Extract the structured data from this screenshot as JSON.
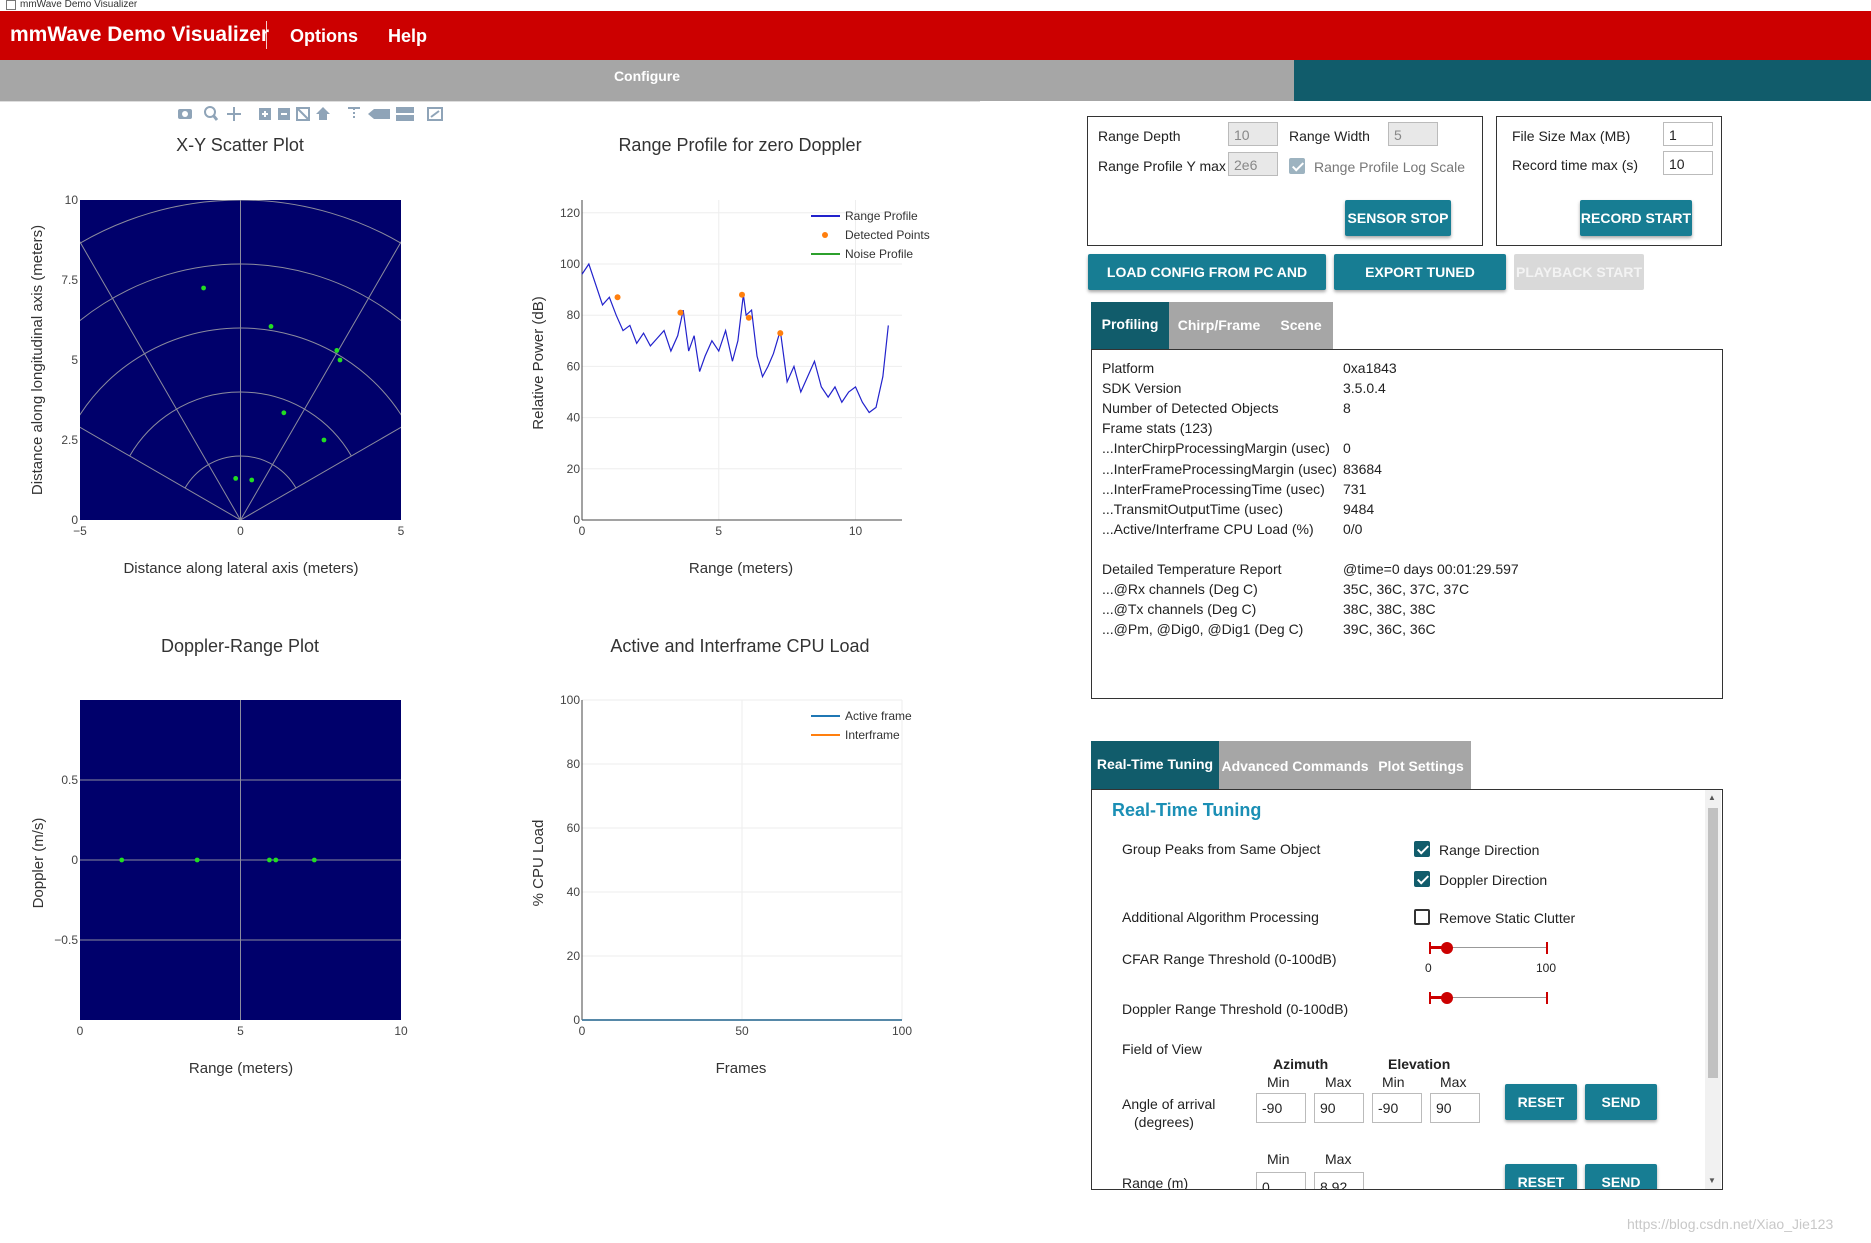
{
  "window": {
    "title": "mmWave Demo Visualizer"
  },
  "appbar": {
    "title": "mmWave Demo Visualizer",
    "menus": [
      "Options",
      "Help"
    ]
  },
  "tabs": {
    "configure": "Configure"
  },
  "toolbar": {
    "icons": [
      "camera-icon",
      "zoom-icon",
      "pan-icon",
      "zoom-in-icon",
      "zoom-out-icon",
      "autoscale-icon",
      "home-icon",
      "spike-icon",
      "hover-closest-icon",
      "hover-compare-icon",
      "logo-icon"
    ]
  },
  "colors": {
    "appbar": "#cc0000",
    "teal": "#115c6b",
    "button": "#177d93",
    "plot_bg": "#00006b",
    "points": "#22dd22",
    "range_line": "#2222cc",
    "detected": "#ff7f0e",
    "noise": "#2ca02c",
    "active_line": "#1f77b4",
    "interframe_line": "#ff7f0e"
  },
  "charts": {
    "scatter": {
      "title": "X-Y Scatter Plot",
      "xlabel": "Distance along lateral axis (meters)",
      "ylabel": "Distance along longitudinal axis (meters)",
      "xticks": [
        "−5",
        "0",
        "5"
      ],
      "yticks": [
        "0",
        "2.5",
        "5",
        "7.5",
        "10"
      ]
    },
    "range_profile": {
      "title": "Range Profile for zero Doppler",
      "xlabel": "Range (meters)",
      "ylabel": "Relative Power (dB)",
      "xticks": [
        "0",
        "5",
        "10"
      ],
      "yticks": [
        "0",
        "20",
        "40",
        "60",
        "80",
        "100",
        "120"
      ],
      "legend": [
        "Range Profile",
        "Detected Points",
        "Noise Profile"
      ]
    },
    "doppler": {
      "title": "Doppler-Range Plot",
      "xlabel": "Range (meters)",
      "ylabel": "Doppler (m/s)",
      "xticks": [
        "0",
        "5",
        "10"
      ],
      "yticks": [
        "−0.5",
        "0",
        "0.5"
      ]
    },
    "cpu": {
      "title": "Active and Interframe  CPU Load",
      "xlabel": "Frames",
      "ylabel": "% CPU Load",
      "xticks": [
        "0",
        "50",
        "100"
      ],
      "yticks": [
        "0",
        "20",
        "40",
        "60",
        "80",
        "100"
      ],
      "legend": [
        "Active frame",
        "Interframe"
      ]
    }
  },
  "chart_data": [
    {
      "type": "scatter",
      "title": "X-Y Scatter Plot",
      "xlabel": "Distance along lateral axis (meters)",
      "ylabel": "Distance along longitudinal axis (meters)",
      "xlim": [
        -5,
        5
      ],
      "ylim": [
        0,
        10
      ],
      "x": [
        -1.15,
        0.95,
        3.0,
        3.1,
        1.35,
        2.6,
        -0.15,
        0.35
      ],
      "y": [
        7.25,
        6.05,
        5.3,
        5.0,
        3.35,
        2.5,
        1.3,
        1.25
      ]
    },
    {
      "type": "line",
      "title": "Range Profile for zero Doppler",
      "xlabel": "Range (meters)",
      "ylabel": "Relative Power (dB)",
      "xlim": [
        0,
        11.7
      ],
      "ylim": [
        0,
        125
      ],
      "series": [
        {
          "name": "Range Profile",
          "x": [
            0,
            0.25,
            0.5,
            0.75,
            1.0,
            1.25,
            1.5,
            1.75,
            2.0,
            2.25,
            2.5,
            2.75,
            3.0,
            3.25,
            3.5,
            3.7,
            3.9,
            4.1,
            4.3,
            4.5,
            4.75,
            5.0,
            5.25,
            5.5,
            5.7,
            5.9,
            6.0,
            6.2,
            6.4,
            6.6,
            6.8,
            7.0,
            7.25,
            7.5,
            7.75,
            8.0,
            8.25,
            8.5,
            8.75,
            9.0,
            9.25,
            9.5,
            9.75,
            10.0,
            10.25,
            10.5,
            10.75,
            11.0,
            11.2
          ],
          "y": [
            96,
            100,
            92,
            84,
            87,
            80,
            74,
            76,
            69,
            73,
            68,
            71,
            74,
            66,
            72,
            82,
            66,
            72,
            58,
            64,
            70,
            66,
            74,
            62,
            70,
            88,
            80,
            82,
            64,
            56,
            60,
            65,
            74,
            54,
            60,
            50,
            56,
            62,
            52,
            48,
            52,
            46,
            50,
            52,
            46,
            42,
            44,
            56,
            76
          ]
        },
        {
          "name": "Detected Points",
          "x": [
            1.3,
            3.6,
            5.85,
            6.1,
            7.25
          ],
          "y": [
            87,
            81,
            88,
            79,
            73
          ]
        },
        {
          "name": "Noise Profile",
          "x": [],
          "y": []
        }
      ]
    },
    {
      "type": "scatter",
      "title": "Doppler-Range Plot",
      "xlabel": "Range (meters)",
      "ylabel": "Doppler (m/s)",
      "xlim": [
        0,
        10
      ],
      "ylim": [
        -1,
        1
      ],
      "x": [
        1.3,
        3.65,
        5.9,
        6.1,
        7.3
      ],
      "y": [
        0,
        0,
        0,
        0,
        0
      ]
    },
    {
      "type": "line",
      "title": "Active and Interframe  CPU Load",
      "xlabel": "Frames",
      "ylabel": "% CPU Load",
      "xlim": [
        0,
        100
      ],
      "ylim": [
        0,
        100
      ],
      "series": [
        {
          "name": "Active frame",
          "x": [
            0,
            100
          ],
          "y": [
            0,
            0
          ]
        },
        {
          "name": "Interframe",
          "x": [
            0,
            100
          ],
          "y": [
            0,
            0
          ]
        }
      ]
    }
  ],
  "config": {
    "range_depth_label": "Range Depth",
    "range_depth_value": "10",
    "range_width_label": "Range Width",
    "range_width_value": "5",
    "range_ymax_label": "Range Profile Y max",
    "range_ymax_value": "2e6",
    "log_scale_label": "Range Profile Log Scale",
    "sensor_stop": "SENSOR STOP",
    "file_size_label": "File Size Max (MB)",
    "file_size_value": "1",
    "record_time_label": "Record time max (s)",
    "record_time_value": "10",
    "record_start": "RECORD START",
    "load_config": "LOAD CONFIG FROM PC AND SEND",
    "export_profile": "EXPORT TUNED PROFILE",
    "playback_start": "PLAYBACK START"
  },
  "stats_tabs": [
    "Profiling",
    "Chirp/Frame",
    "Scene"
  ],
  "stats": [
    {
      "label": "Platform",
      "value": "0xa1843"
    },
    {
      "label": "SDK Version",
      "value": "3.5.0.4"
    },
    {
      "label": "Number of Detected Objects",
      "value": "8"
    },
    {
      "label": "Frame stats (123)",
      "value": ""
    },
    {
      "label": "...InterChirpProcessingMargin (usec)",
      "value": "0"
    },
    {
      "label": "...InterFrameProcessingMargin (usec)",
      "value": "83684"
    },
    {
      "label": "...InterFrameProcessingTime (usec)",
      "value": "731"
    },
    {
      "label": "...TransmitOutputTime (usec)",
      "value": "9484"
    },
    {
      "label": "...Active/Interframe CPU Load (%)",
      "value": "0/0"
    },
    {
      "label": "Detailed Temperature Report",
      "value": "@time=0 days 00:01:29.597"
    },
    {
      "label": "...@Rx channels (Deg C)",
      "value": "35C, 36C, 37C, 37C"
    },
    {
      "label": "...@Tx channels (Deg C)",
      "value": "38C, 38C, 38C"
    },
    {
      "label": "...@Pm, @Dig0, @Dig1 (Deg C)",
      "value": "39C, 36C, 36C"
    }
  ],
  "tuning_tabs": [
    "Real-Time Tuning",
    "Advanced Commands",
    "Plot Settings"
  ],
  "tuning": {
    "heading": "Real-Time Tuning",
    "group_peaks": "Group Peaks from Same Object",
    "range_direction": "Range Direction",
    "doppler_direction": "Doppler Direction",
    "additional": "Additional Algorithm Processing",
    "remove_clutter": "Remove Static Clutter",
    "cfar_label": "CFAR Range Threshold (0-100dB)",
    "cfar_min": "0",
    "cfar_max": "100",
    "cfar_value": 15,
    "doppler_label": "Doppler Range Threshold (0-100dB)",
    "doppler_value": 15,
    "fov_label": "Field of View",
    "azimuth": "Azimuth",
    "elevation": "Elevation",
    "min": "Min",
    "max": "Max",
    "angle_label": "Angle of arrival",
    "angle_units": "(degrees)",
    "az_min": "-90",
    "az_max": "90",
    "el_min": "-90",
    "el_max": "90",
    "reset": "RESET",
    "send": "SEND",
    "range_label": "Range (m)",
    "range_min": "0",
    "range_max": "8.92"
  },
  "watermark": "https://blog.csdn.net/Xiao_Jie123"
}
